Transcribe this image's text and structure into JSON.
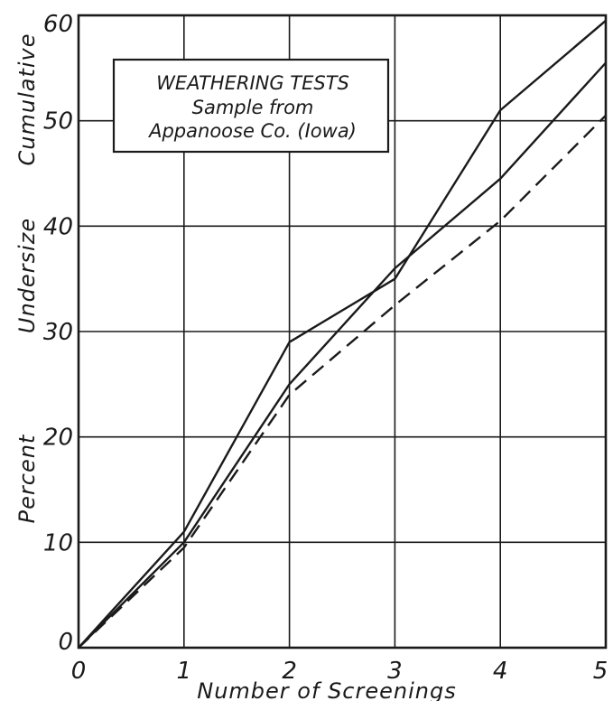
{
  "chart_data": {
    "type": "line",
    "title_lines": [
      "WEATHERING TESTS",
      "Sample from",
      "Appanoose Co. (Iowa)"
    ],
    "xlabel": "Number of Screenings",
    "ylabel_words": [
      "Percent",
      "Undersize",
      "Cumulative"
    ],
    "x": [
      0,
      1,
      2,
      3,
      4,
      5
    ],
    "xlim": [
      0,
      5
    ],
    "ylim": [
      0,
      60
    ],
    "x_ticks": [
      "0",
      "1",
      "2",
      "3",
      "4",
      "5"
    ],
    "y_ticks": [
      "0",
      "10",
      "20",
      "30",
      "40",
      "50",
      "60"
    ],
    "grid": true,
    "legend": "none",
    "series": [
      {
        "style": "solid",
        "values": [
          0,
          11,
          29,
          35,
          51,
          59.5
        ]
      },
      {
        "style": "solid",
        "values": [
          0,
          10,
          25,
          36,
          44.5,
          55.5
        ]
      },
      {
        "style": "dashed",
        "values": [
          0,
          9.5,
          24,
          32.5,
          40.5,
          50.5
        ]
      }
    ],
    "colors": {
      "ink": "#1a1a1a",
      "paper": "#ffffff"
    }
  }
}
